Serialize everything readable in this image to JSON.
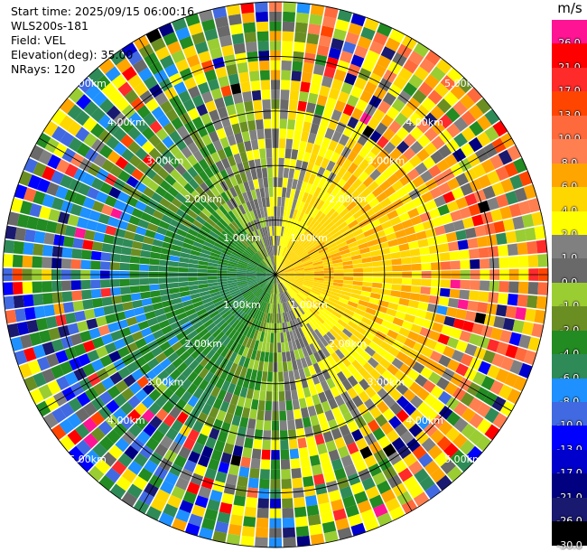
{
  "info": {
    "start_time": "Start time: 2025/09/15 06:00:16",
    "instrument": "WLS200s-181",
    "field": "Field: VEL",
    "elevation": "Elevation(deg): 35.00",
    "nrays": "NRays: 120"
  },
  "colorbar": {
    "unit": "m/s",
    "levels": [
      {
        "label": "26.0",
        "color": "#ff1493"
      },
      {
        "label": "21.0",
        "color": "#ff0000"
      },
      {
        "label": "17.0",
        "color": "#ff2a2a"
      },
      {
        "label": "13.0",
        "color": "#ff4500"
      },
      {
        "label": "10.0",
        "color": "#ff6a3d"
      },
      {
        "label": "8.0",
        "color": "#ff7f50"
      },
      {
        "label": "6.0",
        "color": "#ffa500"
      },
      {
        "label": "4.0",
        "color": "#ffd700"
      },
      {
        "label": "2.0",
        "color": "#ffff00"
      },
      {
        "label": "1.0",
        "color": "#808080"
      },
      {
        "label": "0.0",
        "color": "#696969"
      },
      {
        "label": "-1.0",
        "color": "#9acd32"
      },
      {
        "label": "-2.0",
        "color": "#6b8e23"
      },
      {
        "label": "-4.0",
        "color": "#228b22"
      },
      {
        "label": "-6.0",
        "color": "#2e8b57"
      },
      {
        "label": "-8.0",
        "color": "#1e90ff"
      },
      {
        "label": "-10.0",
        "color": "#4169e1"
      },
      {
        "label": "-13.0",
        "color": "#0000ff"
      },
      {
        "label": "-17.0",
        "color": "#0000cd"
      },
      {
        "label": "-21.0",
        "color": "#000080"
      },
      {
        "label": "-26.0",
        "color": "#191970"
      },
      {
        "label": "-30.0",
        "color": "#000000"
      }
    ]
  },
  "chart_data": {
    "type": "heatmap",
    "projection": "polar-ppi",
    "field": "VEL",
    "units": "m/s",
    "nrays": 120,
    "max_range_km": 5.0,
    "range_rings_km": [
      1,
      2,
      3,
      4,
      5
    ],
    "ring_labels": [
      "1.00km",
      "2.00km",
      "3.00km",
      "4.00km",
      "5.00km"
    ],
    "spokes_deg": [
      0,
      30,
      60,
      90,
      120,
      150,
      180,
      210,
      240,
      270,
      300,
      330
    ],
    "sectors": [
      {
        "from_deg": -90,
        "to_deg": 0,
        "dominant_value": -1.0,
        "description": "north-west: olive/green negative velocities"
      },
      {
        "from_deg": 0,
        "to_deg": 90,
        "dominant_value": 2.0,
        "description": "north-east: yellow/orange positive velocities"
      },
      {
        "from_deg": 90,
        "to_deg": 180,
        "dominant_value": 4.0,
        "description": "south-east: yellow to orange/salmon positive velocities"
      },
      {
        "from_deg": 180,
        "to_deg": 270,
        "dominant_value": -6.0,
        "description": "south-west: green/blue negative velocities"
      }
    ]
  }
}
